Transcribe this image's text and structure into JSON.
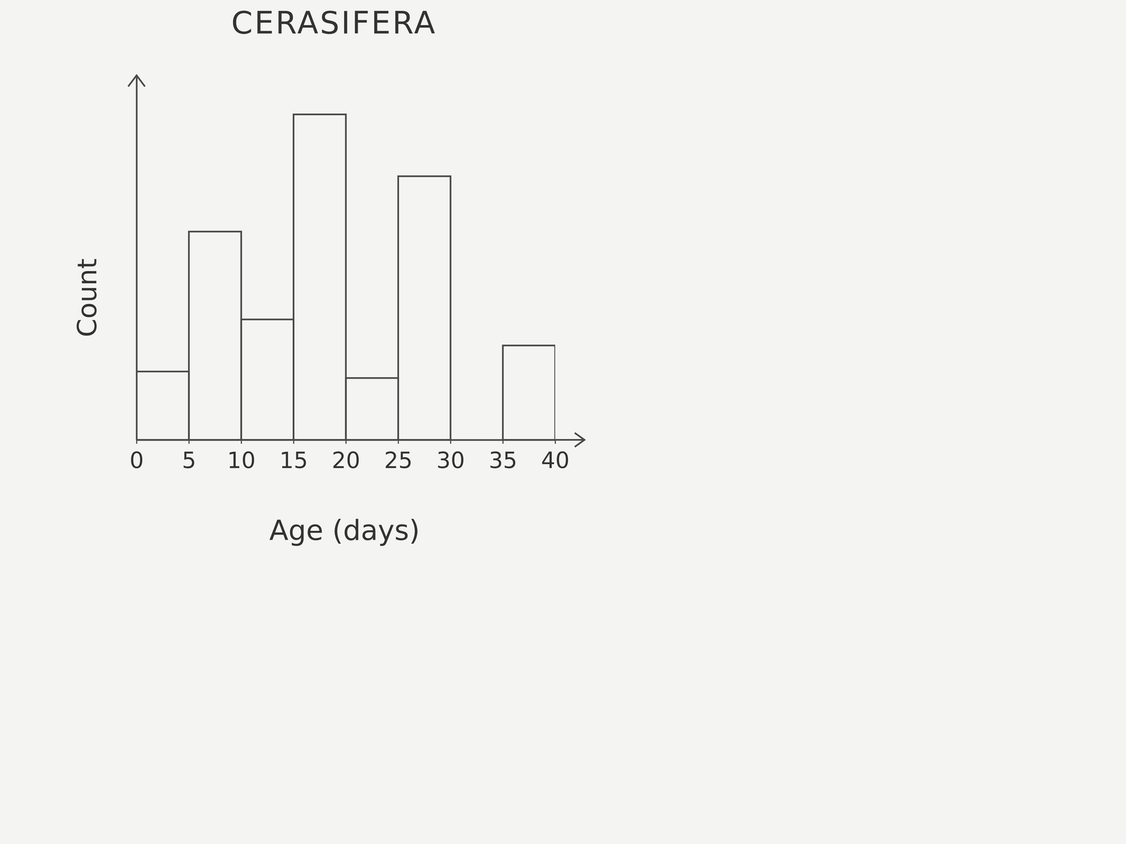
{
  "chart_data": {
    "type": "histogram",
    "title": "CERASIFERA",
    "x_label": "Age (days)",
    "y_label": "Count",
    "bins": [
      0,
      5,
      10,
      15,
      20,
      25,
      30,
      35,
      40
    ],
    "values": [
      2.1,
      6.4,
      3.7,
      10,
      1.9,
      8.1,
      0,
      2.9
    ],
    "xlim": [
      0,
      40
    ],
    "xticks": [
      0,
      5,
      10,
      15,
      20,
      25,
      30,
      35,
      40
    ],
    "ylim": [
      0,
      11.2
    ],
    "tick_labels": "x",
    "color": "#4a4a4a"
  }
}
